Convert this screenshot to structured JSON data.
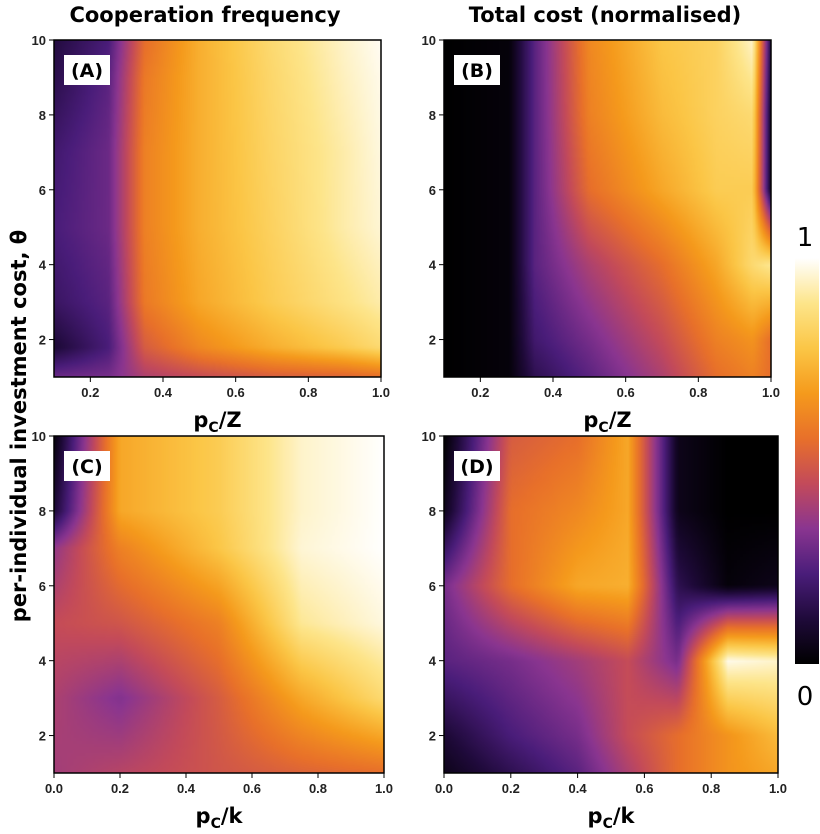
{
  "column_titles": [
    "Cooperation frequency",
    "Total cost (normalised)"
  ],
  "y_axis_label": "per-individual investment cost, θ",
  "colorbar": {
    "max_label": "1",
    "min_label": "0",
    "stops": [
      "#000000",
      "#1f0a3a",
      "#4a1d7a",
      "#8a3590",
      "#c34a5a",
      "#e8702a",
      "#f59a1c",
      "#fbc646",
      "#fde58a",
      "#ffffff"
    ]
  },
  "chart_data": [
    {
      "type": "heatmap",
      "panel_label": "(A)",
      "xlabel_main": "p",
      "xlabel_sub": "C",
      "xlabel_rest": "/Z",
      "xlim": [
        0.1,
        1.0
      ],
      "ylim": [
        1,
        10
      ],
      "x_ticks": [
        "0.2",
        "0.4",
        "0.6",
        "0.8",
        "1.0"
      ],
      "x_tick_values": [
        0.2,
        0.4,
        0.6,
        0.8,
        1.0
      ],
      "y_ticks": [
        "2",
        "4",
        "6",
        "8",
        "10"
      ],
      "y_tick_values": [
        2,
        4,
        6,
        8,
        10
      ],
      "x": [
        0.1,
        0.25,
        0.35,
        0.5,
        0.7,
        0.9,
        1.0
      ],
      "y": [
        1,
        1.8,
        3,
        5,
        7,
        9,
        10
      ],
      "z": [
        [
          0.28,
          0.3,
          0.4,
          0.45,
          0.5,
          0.52,
          0.55
        ],
        [
          0.1,
          0.22,
          0.5,
          0.62,
          0.72,
          0.8,
          0.85
        ],
        [
          0.18,
          0.25,
          0.58,
          0.7,
          0.8,
          0.88,
          0.92
        ],
        [
          0.22,
          0.28,
          0.6,
          0.72,
          0.82,
          0.92,
          0.96
        ],
        [
          0.2,
          0.28,
          0.6,
          0.72,
          0.83,
          0.92,
          0.97
        ],
        [
          0.14,
          0.25,
          0.58,
          0.72,
          0.84,
          0.94,
          0.98
        ],
        [
          0.12,
          0.22,
          0.55,
          0.72,
          0.85,
          0.95,
          0.99
        ]
      ]
    },
    {
      "type": "heatmap",
      "panel_label": "(B)",
      "xlabel_main": "p",
      "xlabel_sub": "C",
      "xlabel_rest": "/Z",
      "xlim": [
        0.1,
        1.0
      ],
      "ylim": [
        1,
        10
      ],
      "x_ticks": [
        "0.2",
        "0.4",
        "0.6",
        "0.8",
        "1.0"
      ],
      "x_tick_values": [
        0.2,
        0.4,
        0.6,
        0.8,
        1.0
      ],
      "y_ticks": [
        "2",
        "4",
        "6",
        "8",
        "10"
      ],
      "y_tick_values": [
        2,
        4,
        6,
        8,
        10
      ],
      "x": [
        0.1,
        0.28,
        0.35,
        0.5,
        0.7,
        0.85,
        0.95,
        1.0
      ],
      "y": [
        1,
        2,
        4,
        6,
        8,
        10
      ],
      "z": [
        [
          0.0,
          0.02,
          0.15,
          0.25,
          0.4,
          0.55,
          0.6,
          0.55
        ],
        [
          0.0,
          0.02,
          0.2,
          0.3,
          0.45,
          0.6,
          0.65,
          0.55
        ],
        [
          0.0,
          0.02,
          0.25,
          0.4,
          0.55,
          0.7,
          0.85,
          0.9
        ],
        [
          0.0,
          0.02,
          0.25,
          0.55,
          0.7,
          0.8,
          0.8,
          0.05
        ],
        [
          0.0,
          0.02,
          0.25,
          0.6,
          0.75,
          0.82,
          0.85,
          0.05
        ],
        [
          0.0,
          0.02,
          0.25,
          0.62,
          0.78,
          0.82,
          0.95,
          0.1
        ]
      ]
    },
    {
      "type": "heatmap",
      "panel_label": "(C)",
      "xlabel_main": "p",
      "xlabel_sub": "C",
      "xlabel_rest": "/k",
      "xlim": [
        0.0,
        1.0
      ],
      "ylim": [
        1,
        10
      ],
      "x_ticks": [
        "0.0",
        "0.2",
        "0.4",
        "0.6",
        "0.8",
        "1.0"
      ],
      "x_tick_values": [
        0.0,
        0.2,
        0.4,
        0.6,
        0.8,
        1.0
      ],
      "y_ticks": [
        "2",
        "4",
        "6",
        "8",
        "10"
      ],
      "y_tick_values": [
        2,
        4,
        6,
        8,
        10
      ],
      "x": [
        0.0,
        0.2,
        0.5,
        0.75,
        1.0
      ],
      "y": [
        1,
        3,
        5,
        7,
        8,
        10
      ],
      "z": [
        [
          0.38,
          0.42,
          0.48,
          0.52,
          0.55
        ],
        [
          0.4,
          0.32,
          0.5,
          0.7,
          0.85
        ],
        [
          0.45,
          0.48,
          0.6,
          0.9,
          0.97
        ],
        [
          0.35,
          0.6,
          0.78,
          0.96,
          1.0
        ],
        [
          0.1,
          0.7,
          0.8,
          0.95,
          1.0
        ],
        [
          0.02,
          0.7,
          0.8,
          0.95,
          1.0
        ]
      ]
    },
    {
      "type": "heatmap",
      "panel_label": "(D)",
      "xlabel_main": "p",
      "xlabel_sub": "C",
      "xlabel_rest": "/k",
      "xlim": [
        0.0,
        1.0
      ],
      "ylim": [
        1,
        10
      ],
      "x_ticks": [
        "0.0",
        "0.2",
        "0.4",
        "0.6",
        "0.8",
        "1.0"
      ],
      "x_tick_values": [
        0.0,
        0.2,
        0.4,
        0.6,
        0.8,
        1.0
      ],
      "y_ticks": [
        "2",
        "4",
        "6",
        "8",
        "10"
      ],
      "y_tick_values": [
        2,
        4,
        6,
        8,
        10
      ],
      "x": [
        0.0,
        0.2,
        0.4,
        0.55,
        0.7,
        0.85,
        1.0
      ],
      "y": [
        1,
        2,
        4,
        6,
        8,
        10
      ],
      "z": [
        [
          0.05,
          0.15,
          0.25,
          0.4,
          0.55,
          0.65,
          0.7
        ],
        [
          0.1,
          0.22,
          0.3,
          0.45,
          0.55,
          0.65,
          0.75
        ],
        [
          0.25,
          0.3,
          0.38,
          0.45,
          0.3,
          0.98,
          0.95
        ],
        [
          0.3,
          0.55,
          0.7,
          0.72,
          0.15,
          0.02,
          0.05
        ],
        [
          0.05,
          0.55,
          0.62,
          0.7,
          0.05,
          0.0,
          0.0
        ],
        [
          0.0,
          0.5,
          0.55,
          0.7,
          0.05,
          0.0,
          0.0
        ]
      ]
    }
  ]
}
